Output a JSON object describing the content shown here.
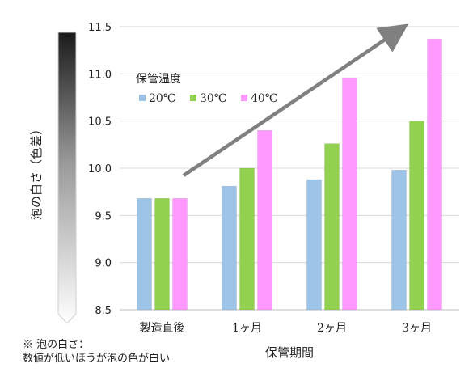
{
  "chart_data": {
    "type": "bar",
    "xlabel": "保管期間",
    "ylabel": "泡の白さ（色差）",
    "ylim": [
      8.5,
      11.5
    ],
    "yticks": [
      "11.5",
      "11.0",
      "10.5",
      "10.0",
      "9.5",
      "9.0",
      "8.5"
    ],
    "grid": true,
    "legend_title": "保管温度",
    "legend_position": "top-left",
    "categories": [
      "製造直後",
      "1ヶ月",
      "2ヶ月",
      "3ヶ月"
    ],
    "series": [
      {
        "name": "20℃",
        "color": "#9dc3e6",
        "values": [
          9.68,
          9.81,
          9.88,
          9.98
        ]
      },
      {
        "name": "30℃",
        "color": "#92d050",
        "values": [
          9.68,
          10.0,
          10.26,
          10.5
        ]
      },
      {
        "name": "40℃",
        "color": "#ff99ff",
        "values": [
          9.68,
          10.4,
          10.96,
          11.37
        ]
      }
    ],
    "annotation": "increasing-trend-arrow"
  },
  "note": {
    "line1": "※ 泡の白さ：",
    "line2": "数値が低いほうが泡の色が白い"
  }
}
